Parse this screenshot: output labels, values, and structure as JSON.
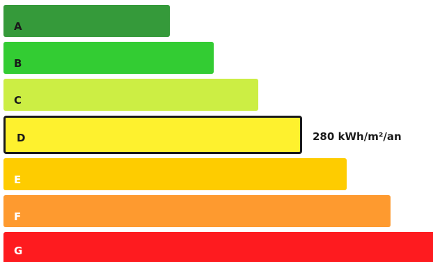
{
  "rating": {
    "classes": [
      {
        "label": "A",
        "color": "#359a3a",
        "text_color": "#1a1a1a"
      },
      {
        "label": "B",
        "color": "#33cc33",
        "text_color": "#1a1a1a"
      },
      {
        "label": "C",
        "color": "#ccee44",
        "text_color": "#1a1a1a"
      },
      {
        "label": "D",
        "color": "#fef12e",
        "text_color": "#1a1a1a"
      },
      {
        "label": "E",
        "color": "#fecc00",
        "text_color": "#ffffff"
      },
      {
        "label": "F",
        "color": "#fe9a2f",
        "text_color": "#ffffff"
      },
      {
        "label": "G",
        "color": "#fe1b1f",
        "text_color": "#ffffff"
      }
    ],
    "current_class": "D",
    "value_label": "280 kWh/m²/an"
  }
}
